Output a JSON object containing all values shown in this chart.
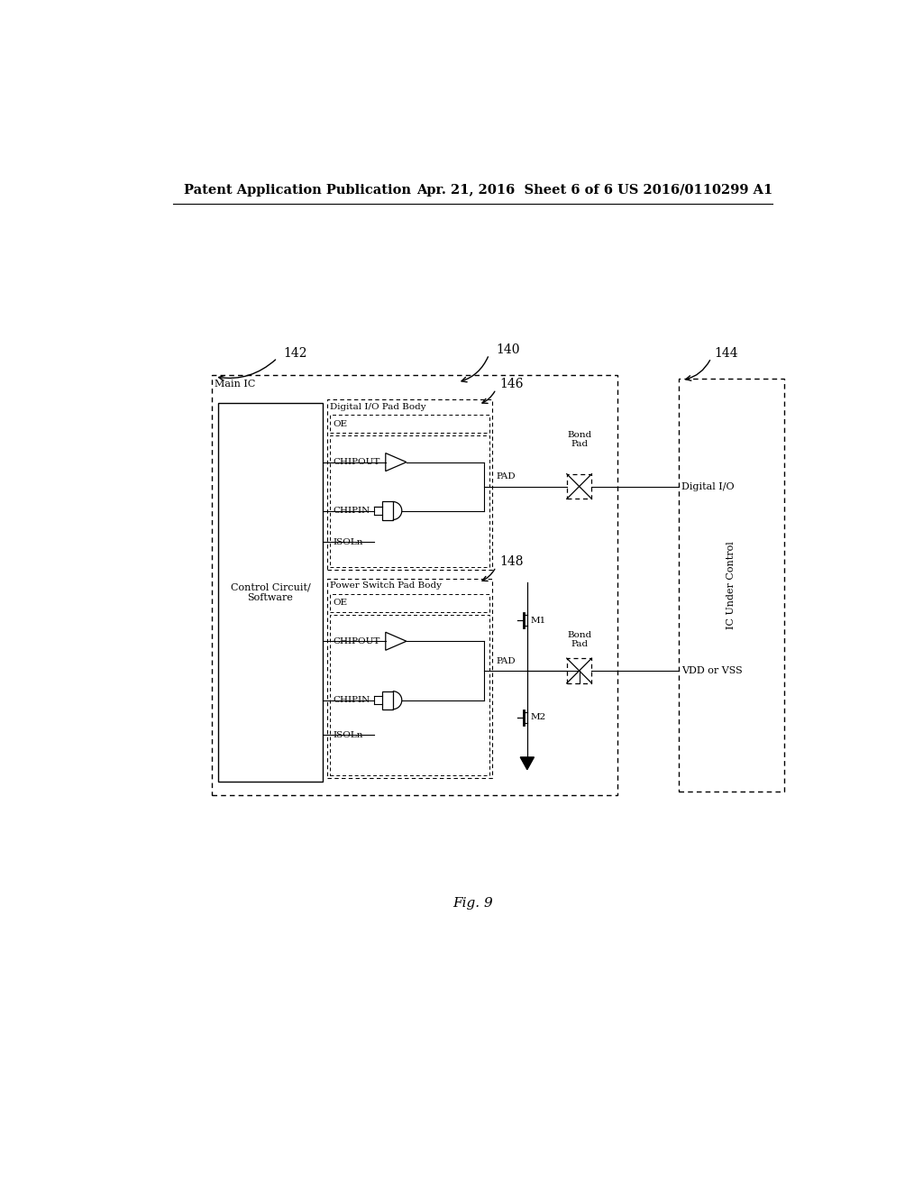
{
  "title_left": "Patent Application Publication",
  "title_mid": "Apr. 21, 2016  Sheet 6 of 6",
  "title_right": "US 2016/0110299 A1",
  "fig_label": "Fig. 9",
  "background_color": "#ffffff",
  "label_140": "140",
  "label_142": "142",
  "label_144": "144",
  "label_146": "146",
  "label_148": "148",
  "text_main_ic": "Main IC",
  "text_control": "Control Circuit/\nSoftware",
  "text_digital_io_pad": "Digital I/O Pad Body",
  "text_power_switch_pad": "Power Switch Pad Body",
  "text_ic_under_control": "IC Under Control",
  "text_digital_io": "Digital I/O",
  "text_vdd_vss": "VDD or VSS",
  "text_bond_pad": "Bond\nPad",
  "text_oe": "OE",
  "text_chipout": "CHIPOUT",
  "text_chipin": "CHIPIN",
  "text_isoln": "ISOLn",
  "text_pad": "PAD",
  "text_m1": "M1",
  "text_m2": "M2"
}
